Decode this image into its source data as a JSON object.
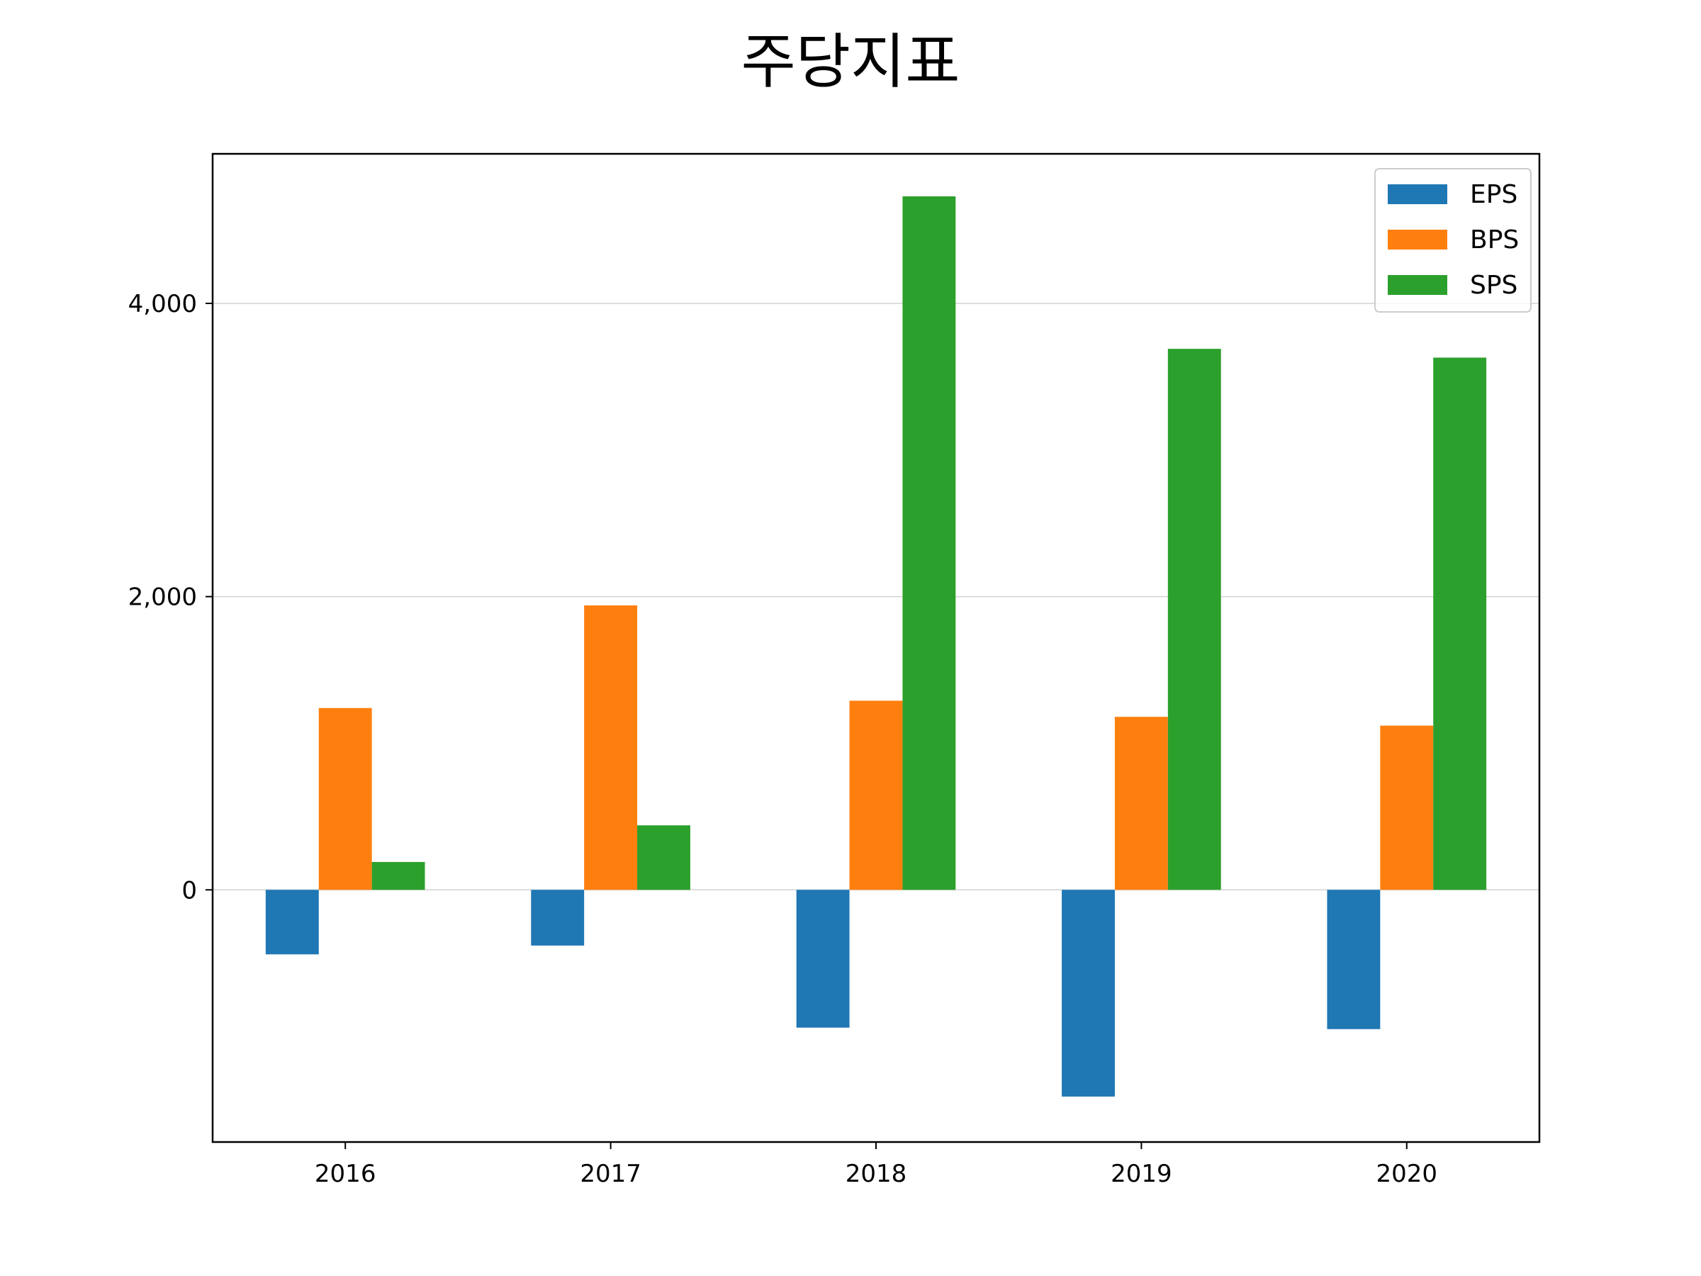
{
  "chart_data": {
    "type": "bar",
    "title": "주당지표",
    "xlabel": "",
    "ylabel": "",
    "categories": [
      "2016",
      "2017",
      "2018",
      "2019",
      "2020"
    ],
    "series": [
      {
        "name": "EPS",
        "color": "#1f77b4",
        "values": [
          -440,
          -380,
          -940,
          -1410,
          -950
        ]
      },
      {
        "name": "BPS",
        "color": "#ff7f0e",
        "values": [
          1240,
          1940,
          1290,
          1180,
          1120
        ]
      },
      {
        "name": "SPS",
        "color": "#2ca02c",
        "values": [
          190,
          440,
          4730,
          3690,
          3630
        ]
      }
    ],
    "ylim": [
      -1720,
      5020
    ],
    "yticks": [
      0,
      2000,
      4000
    ],
    "ytick_labels": [
      "0",
      "2,000",
      "4,000"
    ],
    "grid": "y",
    "legend_position": "top-right"
  }
}
